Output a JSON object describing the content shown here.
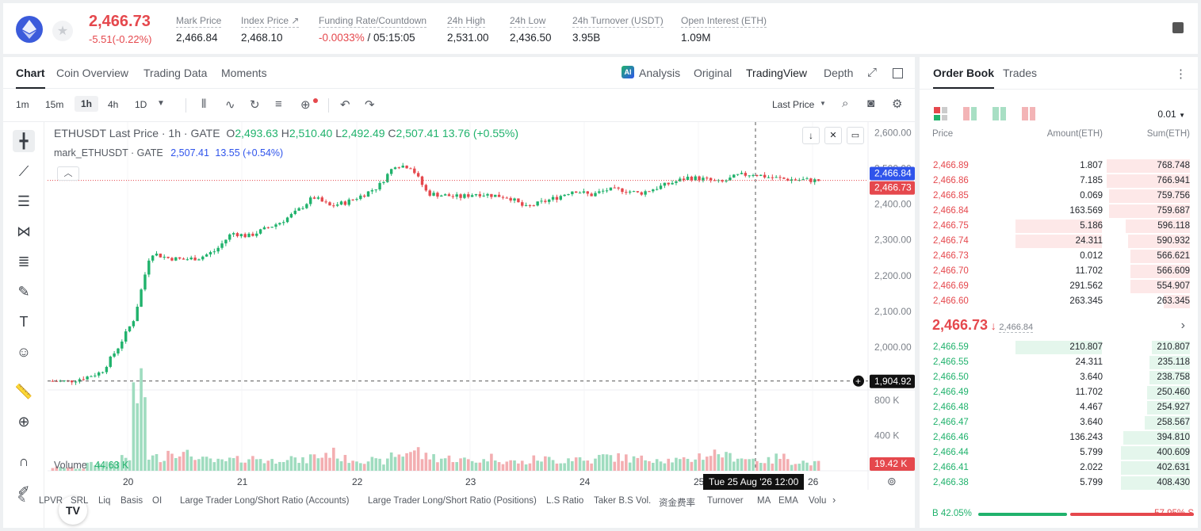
{
  "header": {
    "last_price": "2,466.73",
    "change": "-5.51(-0.22%)",
    "stats": [
      {
        "label": "Mark Price",
        "value": "2,466.84"
      },
      {
        "label": "Index Price ↗",
        "value": "2,468.10"
      },
      {
        "label": "Funding Rate/Countdown",
        "value_red": "-0.0033%",
        "value_rest": " / 05:15:05"
      },
      {
        "label": "24h High",
        "value": "2,531.00"
      },
      {
        "label": "24h Low",
        "value": "2,436.50"
      },
      {
        "label": "24h Turnover (USDT)",
        "value": "3.95B"
      },
      {
        "label": "Open Interest (ETH)",
        "value": "1.09M"
      }
    ]
  },
  "chart_tabs": [
    "Chart",
    "Coin Overview",
    "Trading Data",
    "Moments"
  ],
  "view_tabs": [
    "Analysis",
    "Original",
    "TradingView",
    "Depth"
  ],
  "intervals": [
    "1m",
    "15m",
    "1h",
    "4h",
    "1D"
  ],
  "price_source": "Last Price",
  "legend": {
    "title": "ETHUSDT Last Price · 1h · GATE",
    "o_label": "O",
    "o": "2,493.63",
    "h_label": "H",
    "h": "2,510.40",
    "l_label": "L",
    "l": "2,492.49",
    "c_label": "C",
    "c": "2,507.41",
    "chg": "13.76 (+0.55%)",
    "mark_label": "mark_ETHUSDT · GATE",
    "mark_value": "2,507.41",
    "mark_chg": "13.55 (+0.54%)",
    "volume_label": "Volume",
    "volume_value": "44.63 K"
  },
  "price_axis": [
    "2,600.00",
    "2,500.00",
    "2,400.00",
    "2,300.00",
    "2,200.00",
    "2,100.00",
    "2,000.00"
  ],
  "price_tags": {
    "mark": "2,466.84",
    "last": "2,466.73",
    "cross": "1,904.92",
    "vol": "19.42 K"
  },
  "volume_axis": [
    "800 K",
    "400 K"
  ],
  "date_axis": [
    "20",
    "21",
    "22",
    "23",
    "24",
    "25",
    "26"
  ],
  "crosshair_time": "Tue 25 Aug '26   12:00",
  "indicators": [
    "LPVR",
    "SRL",
    "Liq",
    "Basis",
    "OI",
    "Large Trader Long/Short Ratio (Accounts)",
    "Large Trader Long/Short Ratio (Positions)",
    "L.S Ratio",
    "Taker B.S Vol.",
    "资金费率",
    "Turnover",
    "MA",
    "EMA",
    "Volu"
  ],
  "orderbook": {
    "tabs": [
      "Order Book",
      "Trades"
    ],
    "precision": "0.01",
    "headers": [
      "Price",
      "Amount(ETH)",
      "Sum(ETH)"
    ],
    "asks": [
      {
        "price": "2,466.89",
        "amount": "1.807",
        "sum": "768.748",
        "depth": 0.35,
        "amt_depth": 0
      },
      {
        "price": "2,466.86",
        "amount": "7.185",
        "sum": "766.941",
        "depth": 0.35,
        "amt_depth": 0
      },
      {
        "price": "2,466.85",
        "amount": "0.069",
        "sum": "759.756",
        "depth": 0.34,
        "amt_depth": 0
      },
      {
        "price": "2,466.84",
        "amount": "163.569",
        "sum": "759.687",
        "depth": 0.34,
        "amt_depth": 0
      },
      {
        "price": "2,466.75",
        "amount": "5.186",
        "sum": "596.118",
        "depth": 0.27,
        "amt_depth": 0.35
      },
      {
        "price": "2,466.74",
        "amount": "24.311",
        "sum": "590.932",
        "depth": 0.26,
        "amt_depth": 0.35
      },
      {
        "price": "2,466.73",
        "amount": "0.012",
        "sum": "566.621",
        "depth": 0.25,
        "amt_depth": 0
      },
      {
        "price": "2,466.70",
        "amount": "11.702",
        "sum": "566.609",
        "depth": 0.25,
        "amt_depth": 0
      },
      {
        "price": "2,466.69",
        "amount": "291.562",
        "sum": "554.907",
        "depth": 0.25,
        "amt_depth": 0
      },
      {
        "price": "2,466.60",
        "amount": "263.345",
        "sum": "263.345",
        "depth": 0.11,
        "amt_depth": 0
      }
    ],
    "mid_price": "2,466.73",
    "mid_arrow": "↓",
    "mid_mark": "2,466.84",
    "bids": [
      {
        "price": "2,466.59",
        "amount": "210.807",
        "sum": "210.807",
        "depth": 0.16,
        "amt_depth": 0.35
      },
      {
        "price": "2,466.55",
        "amount": "24.311",
        "sum": "235.118",
        "depth": 0.17,
        "amt_depth": 0
      },
      {
        "price": "2,466.50",
        "amount": "3.640",
        "sum": "238.758",
        "depth": 0.17,
        "amt_depth": 0
      },
      {
        "price": "2,466.49",
        "amount": "11.702",
        "sum": "250.460",
        "depth": 0.18,
        "amt_depth": 0
      },
      {
        "price": "2,466.48",
        "amount": "4.467",
        "sum": "254.927",
        "depth": 0.18,
        "amt_depth": 0
      },
      {
        "price": "2,466.47",
        "amount": "3.640",
        "sum": "258.567",
        "depth": 0.19,
        "amt_depth": 0
      },
      {
        "price": "2,466.46",
        "amount": "136.243",
        "sum": "394.810",
        "depth": 0.28,
        "amt_depth": 0
      },
      {
        "price": "2,466.44",
        "amount": "5.799",
        "sum": "400.609",
        "depth": 0.29,
        "amt_depth": 0
      },
      {
        "price": "2,466.41",
        "amount": "2.022",
        "sum": "402.631",
        "depth": 0.29,
        "amt_depth": 0
      },
      {
        "price": "2,466.38",
        "amount": "5.799",
        "sum": "408.430",
        "depth": 0.29,
        "amt_depth": 0
      }
    ],
    "buy_ratio": "B 42.05%",
    "sell_ratio": "57.95% S",
    "buy_fraction": 0.4205
  },
  "colors": {
    "up": "#20b26c",
    "down": "#e5484d",
    "accent": "#2f54eb"
  },
  "chart_data": {
    "type": "candlestick",
    "title": "ETHUSDT Last Price · 1h · GATE",
    "x": [
      "20",
      "21",
      "22",
      "23",
      "24",
      "25",
      "26"
    ],
    "ylim": [
      1880,
      2630
    ],
    "close_path": [
      1905,
      1904,
      1915,
      1930,
      1998,
      2080,
      2265,
      2250,
      2245,
      2250,
      2270,
      2320,
      2310,
      2330,
      2350,
      2380,
      2420,
      2395,
      2405,
      2425,
      2450,
      2510,
      2505,
      2430,
      2425,
      2420,
      2430,
      2425,
      2420,
      2390,
      2405,
      2420,
      2440,
      2425,
      2440,
      2440,
      2430,
      2445,
      2460,
      2475,
      2470,
      2460,
      2480,
      2485,
      2475,
      2470,
      2468,
      2466
    ],
    "volume_series": [
      40,
      30,
      80,
      100,
      140,
      900,
      160,
      240,
      190,
      130,
      110,
      130,
      150,
      120,
      160,
      120,
      170,
      210,
      140,
      130,
      110,
      190,
      240,
      170,
      150,
      130,
      120,
      160,
      110,
      100,
      140,
      120,
      150,
      120,
      170,
      160,
      140,
      150,
      130,
      120,
      180,
      210,
      170,
      140,
      120,
      160,
      110,
      90
    ]
  }
}
